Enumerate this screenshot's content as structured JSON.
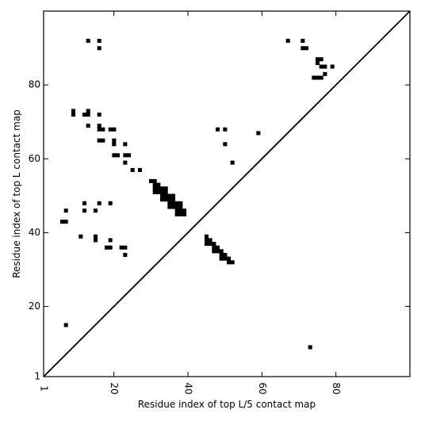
{
  "chart_data": {
    "type": "heatmap",
    "title": "",
    "xlabel": "Residue index of top L/5 contact map",
    "ylabel": "Residue index of top L contact map",
    "xlim": [
      1,
      100
    ],
    "ylim": [
      1,
      100
    ],
    "xticks": [
      1,
      20,
      40,
      60,
      80
    ],
    "yticks": [
      1,
      20,
      40,
      60,
      80
    ],
    "xtick_labels": [
      "1",
      "20",
      "40",
      "60",
      "80"
    ],
    "ytick_labels": [
      "1",
      "20",
      "40",
      "60",
      "80"
    ],
    "diagonal": true,
    "grid": false,
    "colors": {
      "cell": "#000000",
      "diagonal": "#000000",
      "background": "#ffffff"
    },
    "upper_left_contacts": [
      [
        13,
        92
      ],
      [
        16,
        92
      ],
      [
        16,
        90
      ],
      [
        9,
        73
      ],
      [
        9,
        72
      ],
      [
        12,
        72
      ],
      [
        13,
        72
      ],
      [
        13,
        73
      ],
      [
        16,
        72
      ],
      [
        13,
        69
      ],
      [
        16,
        69
      ],
      [
        16,
        68
      ],
      [
        17,
        68
      ],
      [
        19,
        68
      ],
      [
        20,
        68
      ],
      [
        16,
        65
      ],
      [
        17,
        65
      ],
      [
        20,
        65
      ],
      [
        20,
        64
      ],
      [
        23,
        64
      ],
      [
        20,
        61
      ],
      [
        21,
        61
      ],
      [
        23,
        61
      ],
      [
        24,
        61
      ],
      [
        23,
        59
      ],
      [
        25,
        57
      ],
      [
        27,
        57
      ],
      [
        30,
        54
      ],
      [
        31,
        54
      ],
      [
        31,
        53
      ],
      [
        32,
        53
      ],
      [
        31,
        52
      ],
      [
        32,
        52
      ],
      [
        33,
        52
      ],
      [
        34,
        52
      ],
      [
        31,
        51
      ],
      [
        32,
        51
      ],
      [
        33,
        51
      ],
      [
        34,
        51
      ],
      [
        33,
        50
      ],
      [
        34,
        50
      ],
      [
        35,
        50
      ],
      [
        36,
        50
      ],
      [
        33,
        49
      ],
      [
        34,
        49
      ],
      [
        35,
        49
      ],
      [
        36,
        49
      ],
      [
        35,
        48
      ],
      [
        36,
        48
      ],
      [
        37,
        48
      ],
      [
        38,
        48
      ],
      [
        35,
        47
      ],
      [
        36,
        47
      ],
      [
        37,
        47
      ],
      [
        38,
        47
      ],
      [
        37,
        46
      ],
      [
        38,
        46
      ],
      [
        39,
        46
      ],
      [
        37,
        45
      ],
      [
        38,
        45
      ],
      [
        39,
        45
      ],
      [
        12,
        48
      ],
      [
        16,
        48
      ],
      [
        19,
        48
      ],
      [
        7,
        46
      ],
      [
        12,
        46
      ],
      [
        15,
        46
      ],
      [
        6,
        43
      ],
      [
        7,
        43
      ],
      [
        11,
        39
      ],
      [
        15,
        39
      ],
      [
        15,
        38
      ],
      [
        19,
        38
      ],
      [
        18,
        36
      ],
      [
        19,
        36
      ],
      [
        22,
        36
      ],
      [
        23,
        36
      ],
      [
        23,
        34
      ],
      [
        7,
        15
      ],
      [
        48,
        68
      ],
      [
        50,
        68
      ],
      [
        50,
        64
      ],
      [
        52,
        59
      ],
      [
        59,
        67
      ],
      [
        67,
        92
      ],
      [
        71,
        92
      ],
      [
        71,
        90
      ],
      [
        72,
        90
      ],
      [
        75,
        87
      ],
      [
        76,
        87
      ],
      [
        75,
        86
      ],
      [
        76,
        85
      ],
      [
        77,
        85
      ],
      [
        79,
        85
      ],
      [
        77,
        83
      ],
      [
        74,
        82
      ],
      [
        75,
        82
      ],
      [
        76,
        82
      ]
    ],
    "lower_right_contacts": [
      [
        45,
        39
      ],
      [
        45,
        38
      ],
      [
        46,
        38
      ],
      [
        45,
        37
      ],
      [
        46,
        37
      ],
      [
        47,
        37
      ],
      [
        47,
        36
      ],
      [
        48,
        36
      ],
      [
        47,
        35
      ],
      [
        48,
        35
      ],
      [
        49,
        35
      ],
      [
        49,
        34
      ],
      [
        50,
        34
      ],
      [
        49,
        33
      ],
      [
        50,
        33
      ],
      [
        51,
        33
      ],
      [
        51,
        32
      ],
      [
        52,
        32
      ],
      [
        73,
        9
      ]
    ]
  }
}
